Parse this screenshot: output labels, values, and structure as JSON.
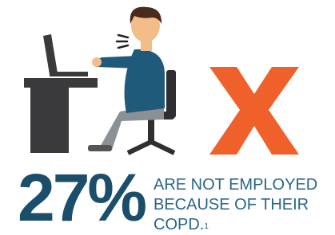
{
  "stat": {
    "value": "27%",
    "lines": [
      "ARE NOT EMPLOYED",
      "BECAUSE OF THEIR",
      "COPD."
    ],
    "footnote": "1"
  }
}
